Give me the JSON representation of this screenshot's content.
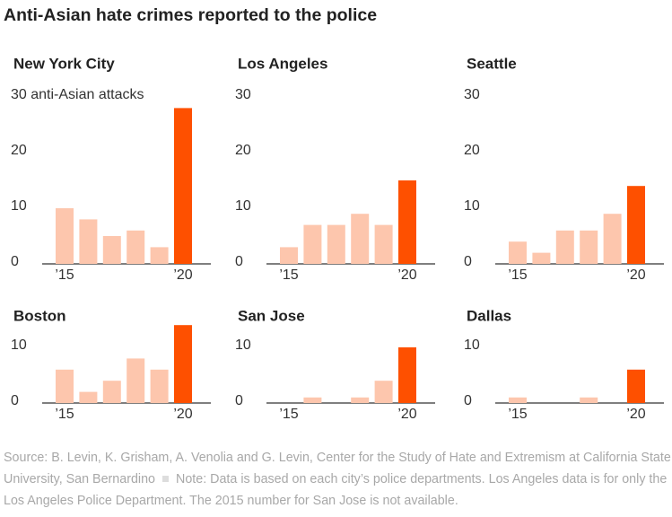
{
  "title": "Anti-Asian hate crimes reported to the police",
  "source": "Source: B. Levin, K. Grisham, A. Venolia and G. Levin, Center for the Study of Hate and Extremism at California State University, San Bernardino",
  "note": "Note: Data is based on each city’s police departments. Los Angeles data is for only the Los Angeles Police Department. The 2015 number for San Jose is not available.",
  "chart_data": [
    {
      "type": "bar",
      "title": "New York City",
      "categories": [
        "’15",
        null,
        null,
        null,
        null,
        "’20"
      ],
      "values": [
        10,
        8,
        5,
        6,
        3,
        28
      ],
      "colors": [
        "#fdc6ad",
        "#fdc6ad",
        "#fdc6ad",
        "#fdc6ad",
        "#fdc6ad",
        "#fe5000"
      ],
      "ylim": [
        0,
        30
      ],
      "yticks": [
        0,
        10,
        20,
        {
          "value": 30,
          "label": "30 anti-Asian attacks"
        }
      ]
    },
    {
      "type": "bar",
      "title": "Los Angeles",
      "categories": [
        "’15",
        null,
        null,
        null,
        null,
        "’20"
      ],
      "values": [
        3,
        7,
        7,
        9,
        7,
        15
      ],
      "colors": [
        "#fdc6ad",
        "#fdc6ad",
        "#fdc6ad",
        "#fdc6ad",
        "#fdc6ad",
        "#fe5000"
      ],
      "ylim": [
        0,
        30
      ],
      "yticks": [
        0,
        10,
        20,
        30
      ]
    },
    {
      "type": "bar",
      "title": "Seattle",
      "categories": [
        "’15",
        null,
        null,
        null,
        null,
        "’20"
      ],
      "values": [
        4,
        2,
        6,
        6,
        9,
        14
      ],
      "colors": [
        "#fdc6ad",
        "#fdc6ad",
        "#fdc6ad",
        "#fdc6ad",
        "#fdc6ad",
        "#fe5000"
      ],
      "ylim": [
        0,
        30
      ],
      "yticks": [
        0,
        10,
        20,
        30
      ]
    },
    {
      "type": "bar",
      "title": "Boston",
      "categories": [
        "’15",
        null,
        null,
        null,
        null,
        "’20"
      ],
      "values": [
        6,
        2,
        4,
        8,
        6,
        14
      ],
      "colors": [
        "#fdc6ad",
        "#fdc6ad",
        "#fdc6ad",
        "#fdc6ad",
        "#fdc6ad",
        "#fe5000"
      ],
      "ylim": [
        0,
        14
      ],
      "yticks": [
        0,
        10
      ]
    },
    {
      "type": "bar",
      "title": "San Jose",
      "categories": [
        "’15",
        null,
        null,
        null,
        null,
        "’20"
      ],
      "values": [
        null,
        1,
        0,
        1,
        4,
        10
      ],
      "colors": [
        "#fdc6ad",
        "#fdc6ad",
        "#fdc6ad",
        "#fdc6ad",
        "#fdc6ad",
        "#fe5000"
      ],
      "ylim": [
        0,
        14
      ],
      "yticks": [
        0,
        10
      ]
    },
    {
      "type": "bar",
      "title": "Dallas",
      "categories": [
        "’15",
        null,
        null,
        null,
        null,
        "’20"
      ],
      "values": [
        1,
        0,
        0,
        1,
        0,
        6
      ],
      "colors": [
        "#fdc6ad",
        "#fdc6ad",
        "#fdc6ad",
        "#fdc6ad",
        "#fdc6ad",
        "#fe5000"
      ],
      "ylim": [
        0,
        14
      ],
      "yticks": [
        0,
        10
      ]
    }
  ]
}
